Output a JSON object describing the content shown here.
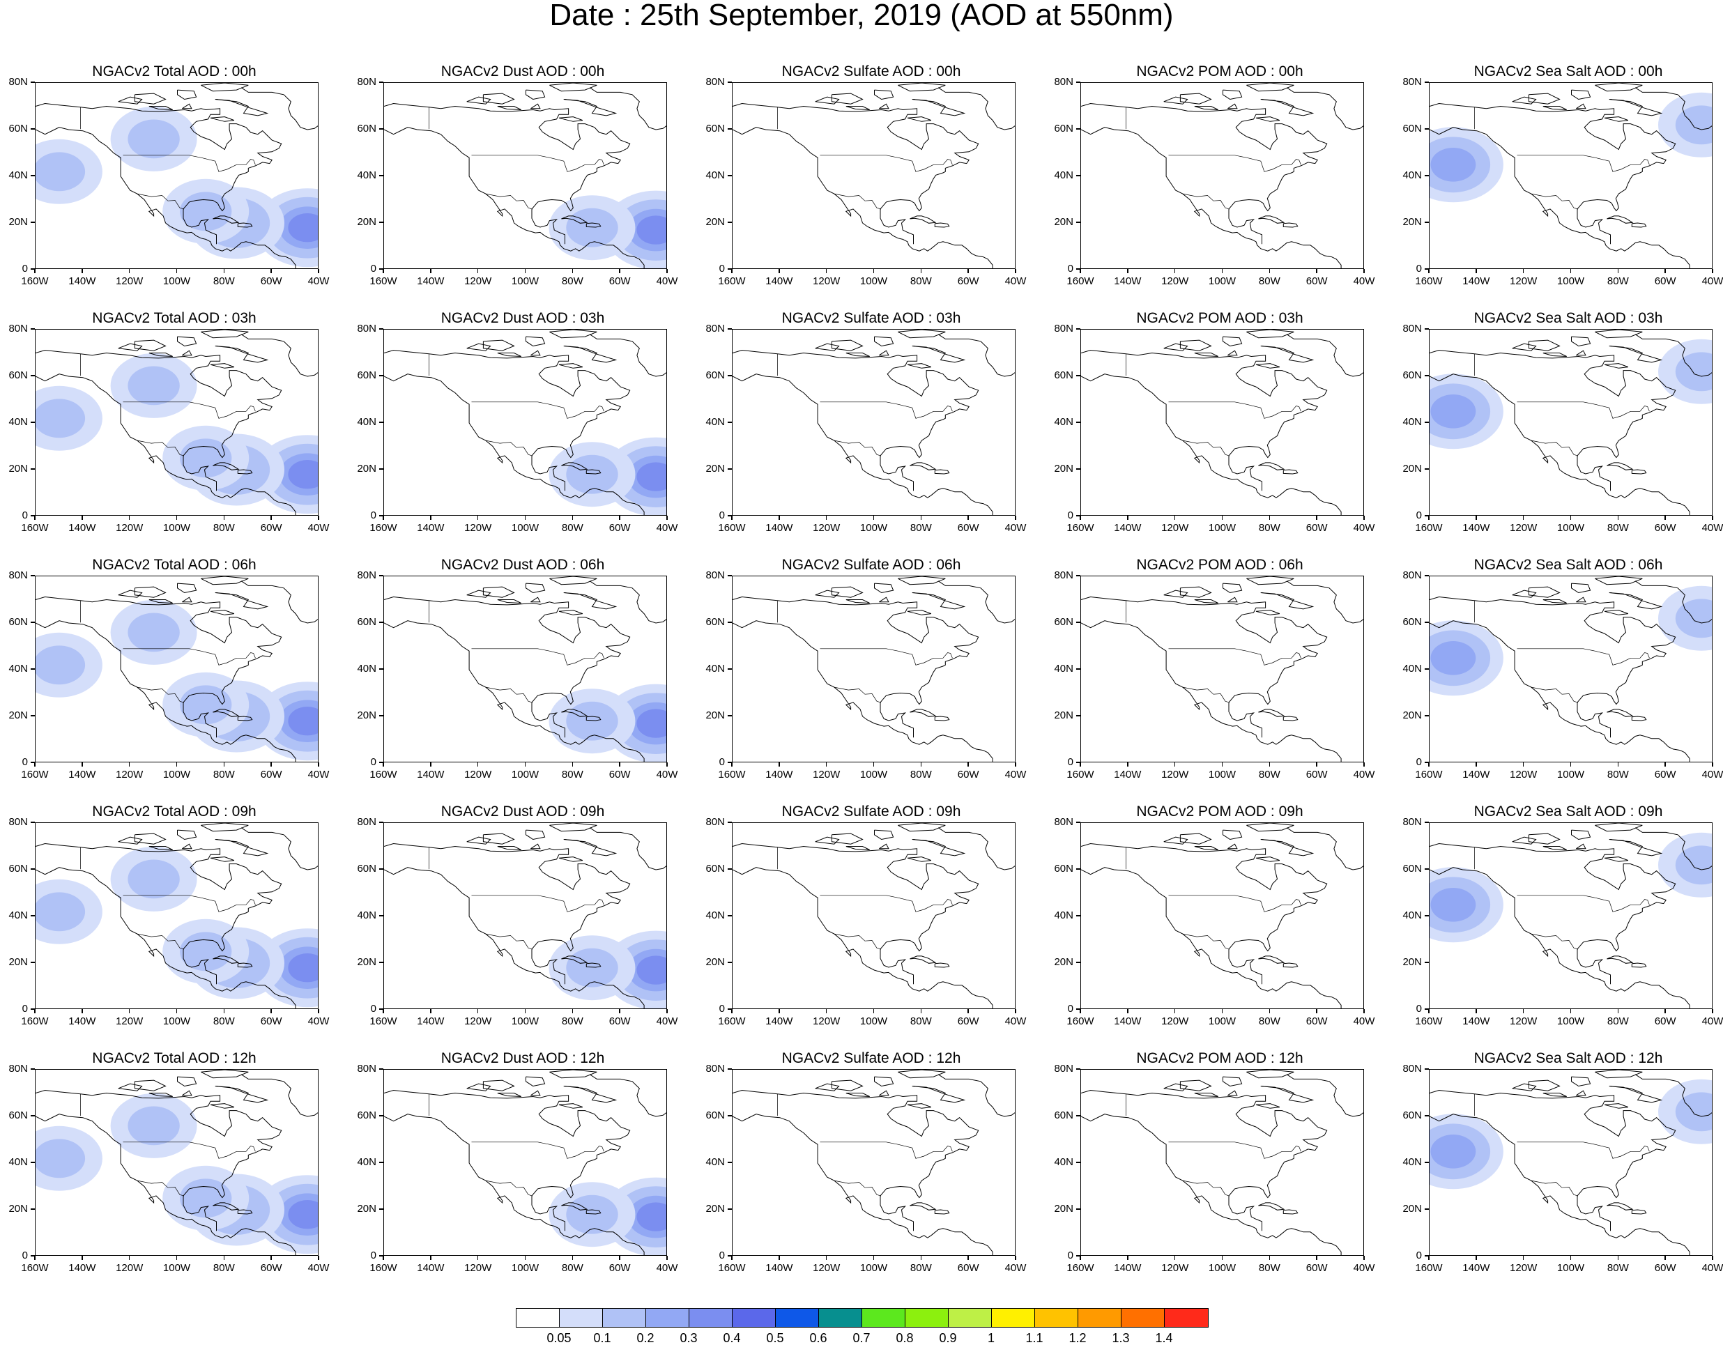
{
  "title": "Date : 25th September, 2019 (AOD at 550nm)",
  "rows": [
    "00h",
    "03h",
    "06h",
    "09h",
    "12h"
  ],
  "columns": [
    "Total",
    "Dust",
    "Sulfate",
    "POM",
    "Sea Salt"
  ],
  "panels": [
    [
      "NGACv2 Total AOD : 00h",
      "NGACv2 Dust AOD : 00h",
      "NGACv2 Sulfate AOD : 00h",
      "NGACv2 POM AOD : 00h",
      "NGACv2 Sea Salt AOD : 00h"
    ],
    [
      "NGACv2 Total AOD : 03h",
      "NGACv2 Dust AOD : 03h",
      "NGACv2 Sulfate AOD : 03h",
      "NGACv2 POM AOD : 03h",
      "NGACv2 Sea Salt AOD : 03h"
    ],
    [
      "NGACv2 Total AOD : 06h",
      "NGACv2 Dust AOD : 06h",
      "NGACv2 Sulfate AOD : 06h",
      "NGACv2 POM AOD : 06h",
      "NGACv2 Sea Salt AOD : 06h"
    ],
    [
      "NGACv2 Total AOD : 09h",
      "NGACv2 Dust AOD : 09h",
      "NGACv2 Sulfate AOD : 09h",
      "NGACv2 POM AOD : 09h",
      "NGACv2 Sea Salt  AOD : 09h"
    ],
    [
      "NGACv2 Total AOD  : 12h",
      "NGACv2 Dust AOD : 12h",
      "NGACv2 Sulfate AOD : 12h",
      "NGACv2 POM  AOD : 12h",
      "NGACv2 Sea Salt  AOD : 12h"
    ]
  ],
  "map": {
    "lon_range": [
      -160,
      -40
    ],
    "lat_range": [
      0,
      80
    ],
    "lat_ticks": [
      "0",
      "20N",
      "40N",
      "60N",
      "80N"
    ],
    "lon_ticks": [
      "160W",
      "140W",
      "120W",
      "100W",
      "80W",
      "60W",
      "40W"
    ]
  },
  "colorbar": {
    "colors": [
      "#ffffff",
      "#d4defa",
      "#b0c2f6",
      "#92a8f4",
      "#7b8ef0",
      "#5b68ea",
      "#0e58e8",
      "#078f8f",
      "#5ce81e",
      "#8cf00e",
      "#bef046",
      "#fff000",
      "#ffc200",
      "#ff9a00",
      "#ff7000",
      "#ff2a1a"
    ],
    "labels": [
      "0.05",
      "0.1",
      "0.2",
      "0.3",
      "0.4",
      "0.5",
      "0.6",
      "0.7",
      "0.8",
      "0.9",
      "1",
      "1.1",
      "1.2",
      "1.3",
      "1.4"
    ]
  },
  "aerosol_fields": {
    "Total": [
      {
        "name": "pacific",
        "lon": -150,
        "lat": 42,
        "level": 0.1
      },
      {
        "name": "saharan-plume",
        "lon": -45,
        "lat": 18,
        "level": 0.3
      },
      {
        "name": "caribbean",
        "lon": -75,
        "lat": 20,
        "level": 0.15
      },
      {
        "name": "gulf",
        "lon": -88,
        "lat": 25,
        "level": 0.1
      },
      {
        "name": "canada",
        "lon": -110,
        "lat": 56,
        "level": 0.1
      }
    ],
    "Dust": [
      {
        "name": "saharan-plume",
        "lon": -45,
        "lat": 17,
        "level": 0.3
      },
      {
        "name": "caribbean",
        "lon": -72,
        "lat": 18,
        "level": 0.1
      }
    ],
    "Sulfate": [],
    "POM": [],
    "Sea Salt": [
      {
        "name": "pacific-storm",
        "lon": -150,
        "lat": 45,
        "level": 0.2
      },
      {
        "name": "atlantic",
        "lon": -45,
        "lat": 62,
        "level": 0.1
      }
    ]
  }
}
